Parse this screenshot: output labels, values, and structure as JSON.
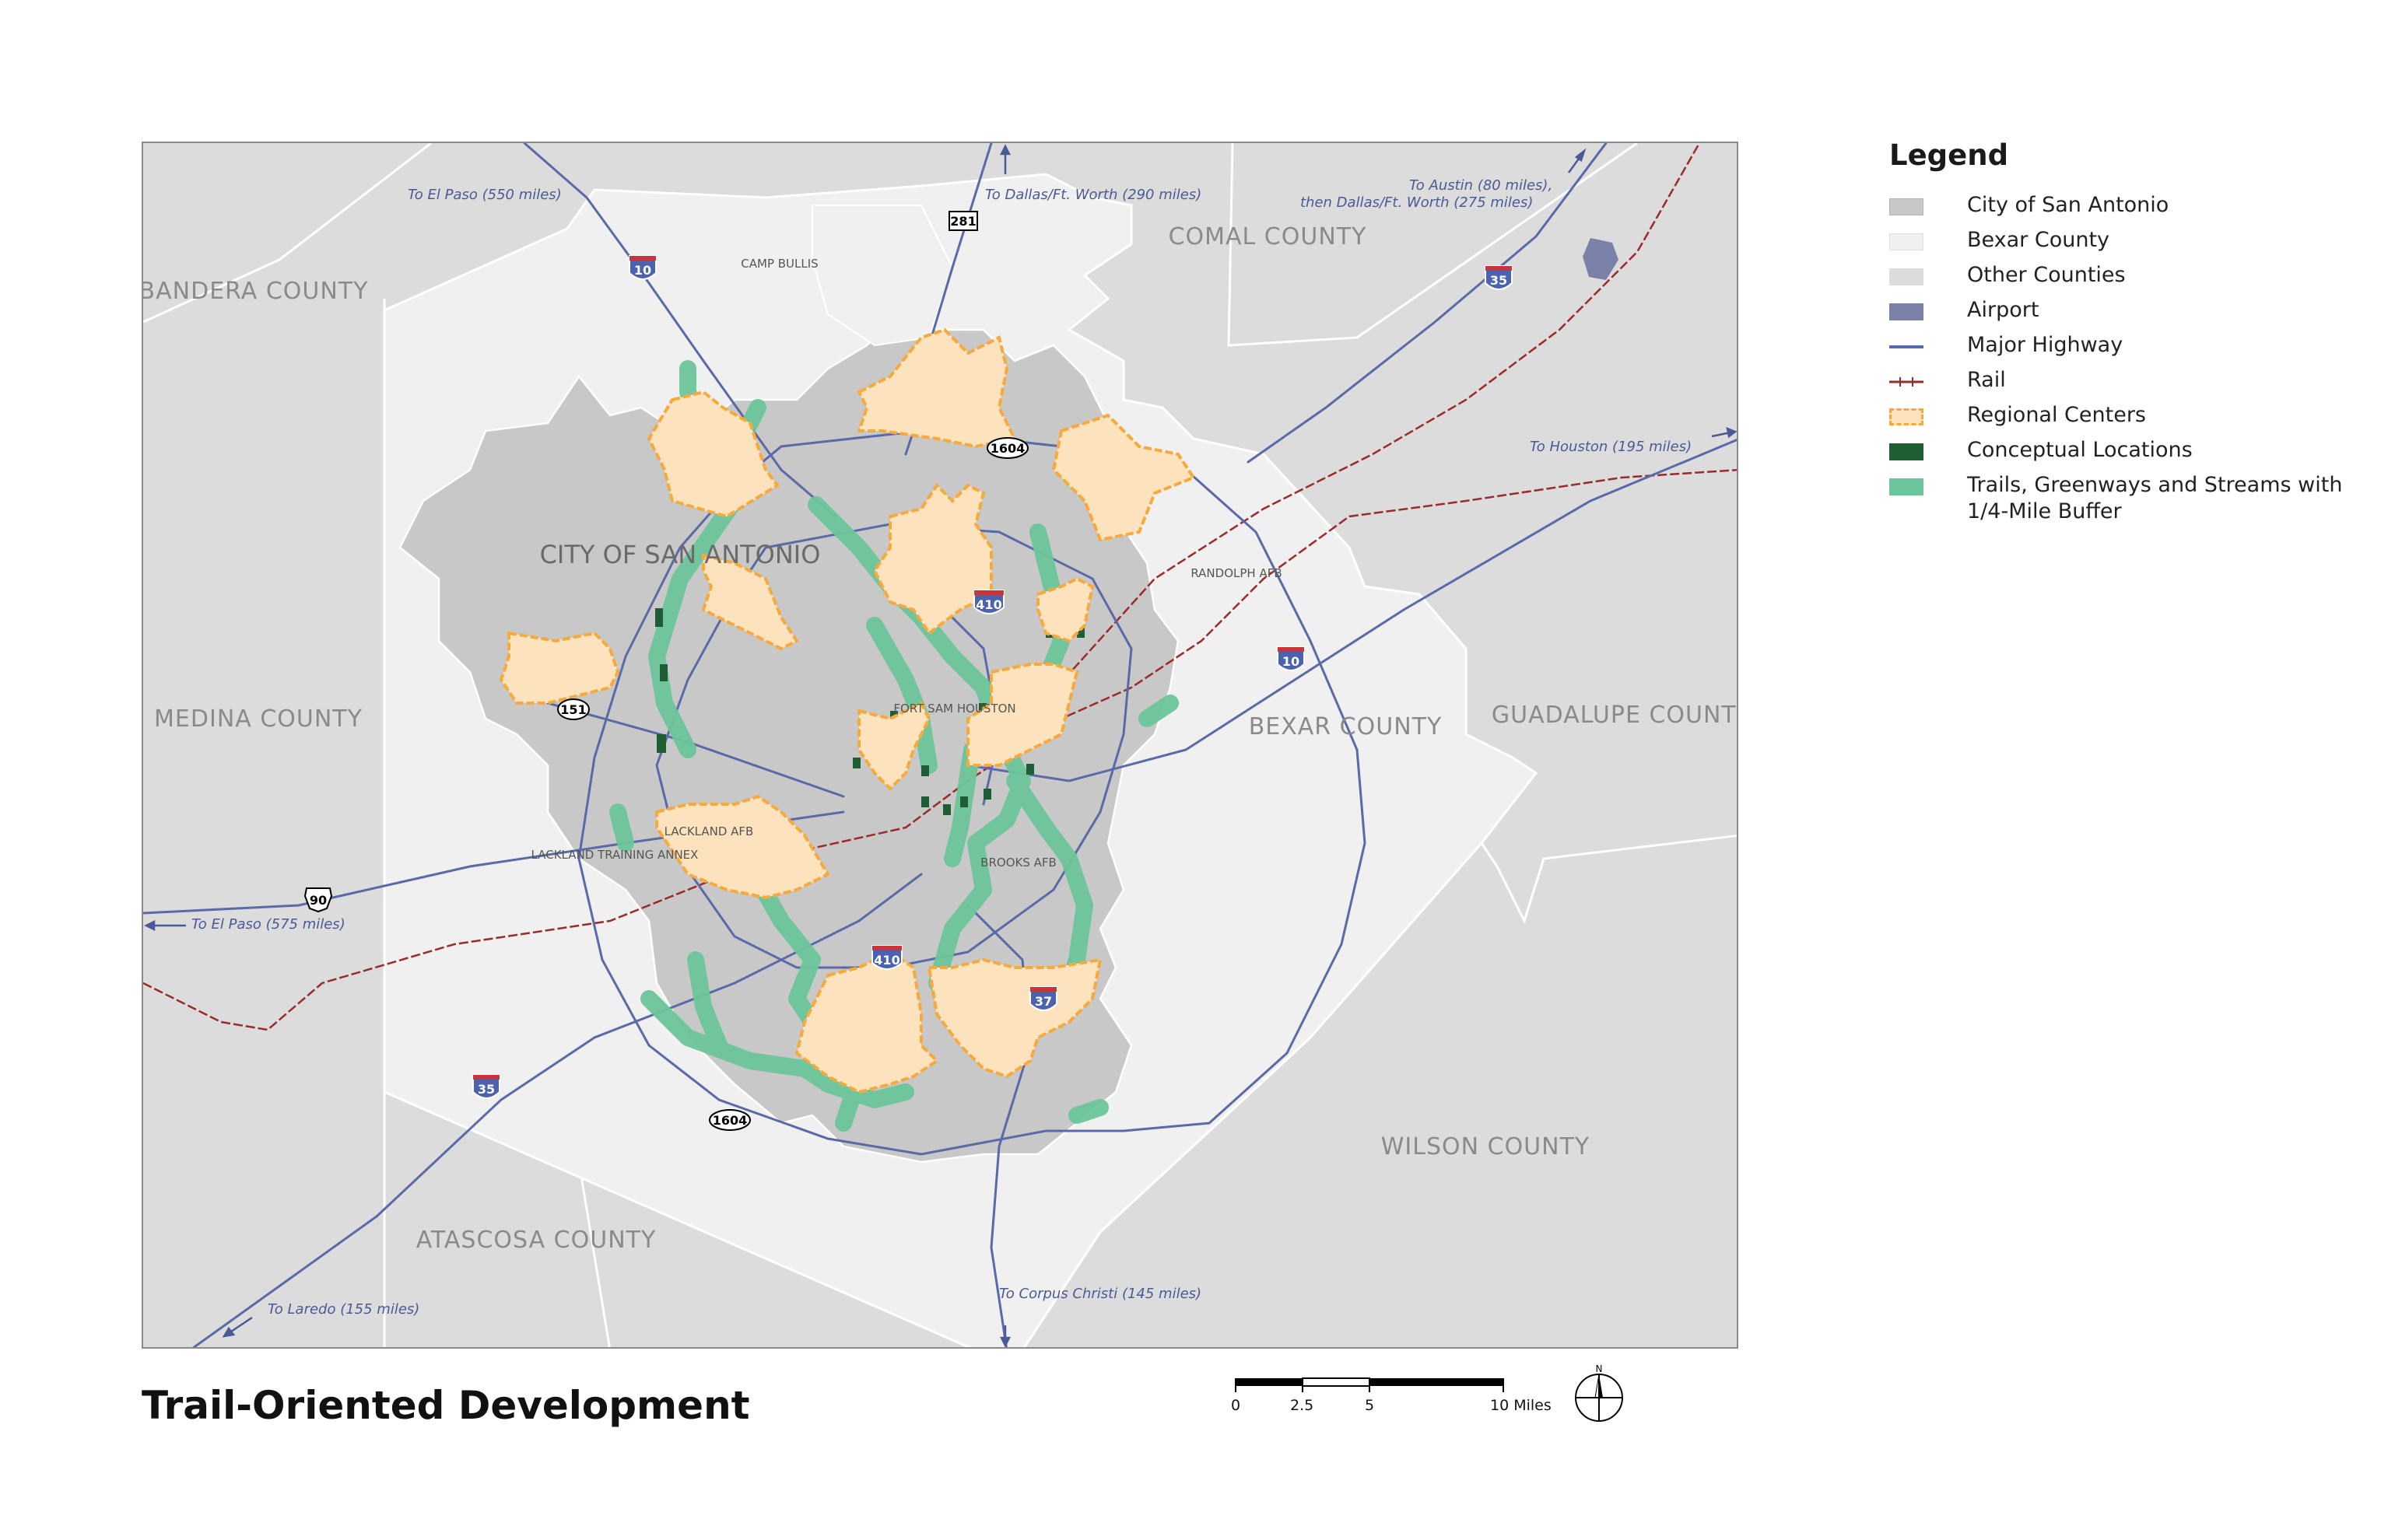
{
  "title": "Trail-Oriented Development",
  "legend": {
    "title": "Legend",
    "items": [
      {
        "label": "City of San Antonio",
        "color": "#c8c8c8",
        "icon": "gray-fill-swatch"
      },
      {
        "label": "Bexar County",
        "color": "#f0f0f0",
        "icon": "light-fill-swatch"
      },
      {
        "label": "Other Counties",
        "color": "#dcdcdc",
        "icon": "gray-fill-swatch"
      },
      {
        "label": "Airport",
        "color": "#7a80a8",
        "icon": "airport-swatch"
      },
      {
        "label": "Major Highway",
        "color": "#5a6aa8",
        "icon": "line-swatch"
      },
      {
        "label": "Rail",
        "color": "#9b2a2a",
        "icon": "rail-swatch"
      },
      {
        "label": "Regional Centers",
        "color": "#f7a93b",
        "icon": "dashed-orange-swatch"
      },
      {
        "label": "Conceptual Locations",
        "color": "#1f5e35",
        "icon": "dark-green-swatch"
      },
      {
        "label": "Trails, Greenways and Streams with 1/4-Mile Buffer",
        "color": "#6cc59b",
        "icon": "green-swatch"
      }
    ]
  },
  "map": {
    "counties": [
      "BANDERA COUNTY",
      "COMAL COUNTY",
      "MEDINA COUNTY",
      "GUADALUPE COUNTY",
      "BEXAR COUNTY",
      "WILSON COUNTY",
      "ATASCOSA COUNTY"
    ],
    "city_label": "CITY OF SAN ANTONIO",
    "places": [
      "CAMP BULLIS",
      "RANDOLPH AFB",
      "FORT SAM HOUSTON",
      "LACKLAND AFB",
      "LACKLAND TRAINING ANNEX",
      "BROOKS AFB"
    ],
    "destinations": [
      "To El Paso (550 miles)",
      "To Dallas/Ft. Worth (290 miles)",
      "To Austin (80 miles),",
      "then Dallas/Ft. Worth (275 miles)",
      "To Houston (195 miles)",
      "To El Paso (575 miles)",
      "To Laredo (155 miles)",
      "To Corpus Christi (145 miles)"
    ],
    "shields": {
      "interstates": [
        "10",
        "35",
        "410",
        "10",
        "410",
        "37",
        "35"
      ],
      "state": [
        "281",
        "1604",
        "151",
        "90",
        "1604"
      ]
    }
  },
  "scale": {
    "ticks": [
      "0",
      "2.5",
      "5",
      "10 Miles"
    ]
  },
  "north_label": "N"
}
